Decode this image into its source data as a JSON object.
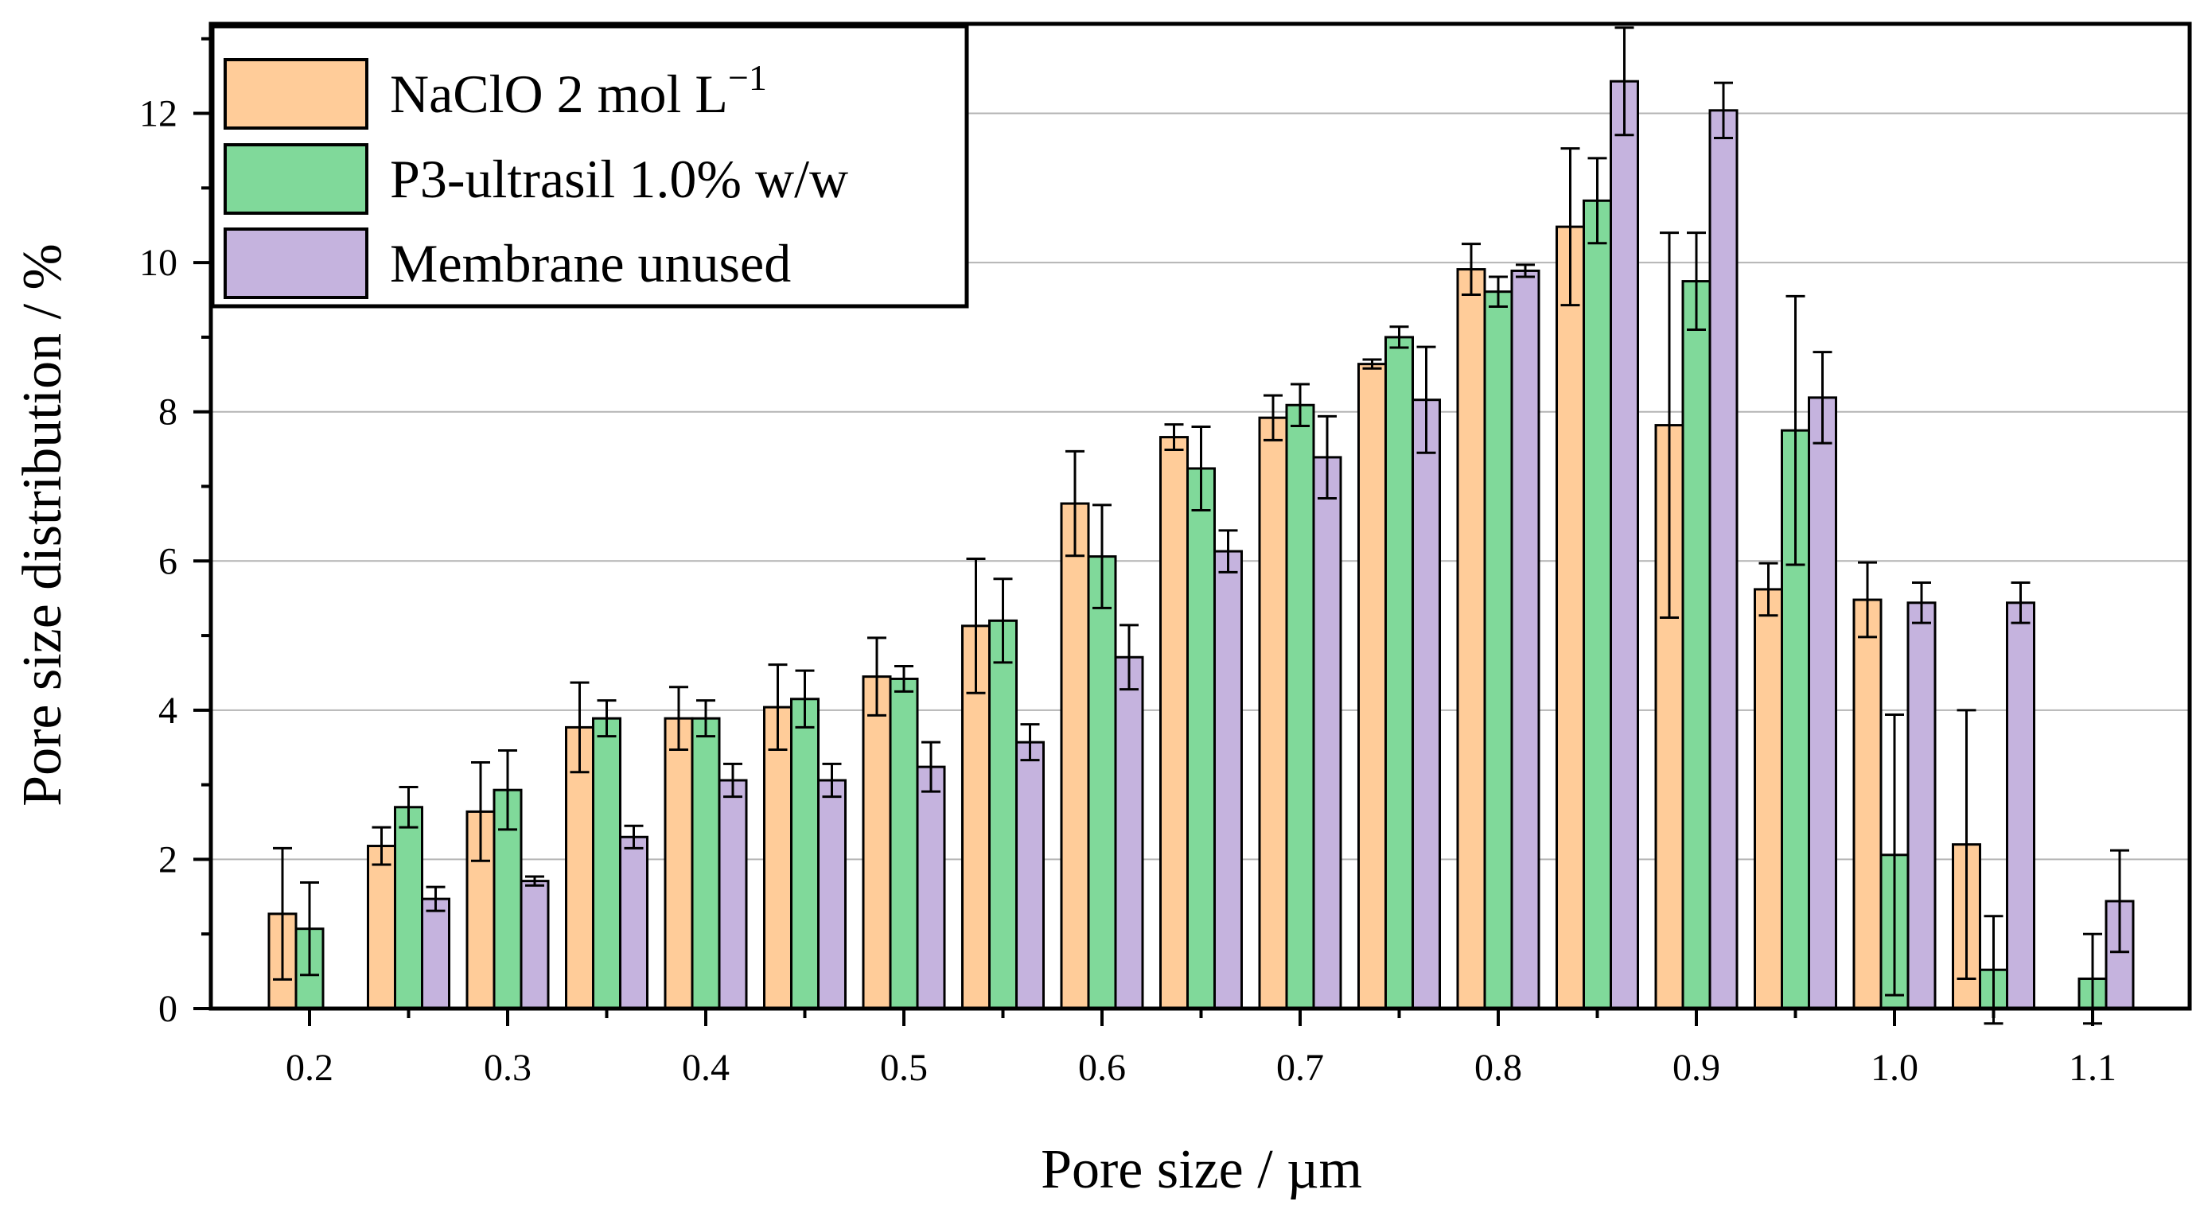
{
  "chart_data": {
    "type": "bar",
    "xlabel": "Pore size / µm",
    "ylabel": "Pore size distribution / %",
    "ylim": [
      0,
      13.2
    ],
    "yticks": [
      0,
      2,
      4,
      6,
      8,
      10,
      12
    ],
    "grid": true,
    "legend_position": "top-left",
    "categories": [
      "0.20",
      "0.25",
      "0.30",
      "0.35",
      "0.40",
      "0.45",
      "0.50",
      "0.55",
      "0.60",
      "0.65",
      "0.70",
      "0.75",
      "0.80",
      "0.85",
      "0.90",
      "0.95",
      "1.00",
      "1.05",
      "1.10"
    ],
    "tick_labels": [
      "0.2",
      "",
      "0.3",
      "",
      "0.4",
      "",
      "0.5",
      "",
      "0.6",
      "",
      "0.7",
      "",
      "0.8",
      "",
      "0.9",
      "",
      "1.0",
      "",
      "1.1"
    ],
    "series": [
      {
        "name": "NaClO 2 mol L",
        "name_sup": "−1",
        "color": "#FFCC99",
        "values": [
          1.27,
          2.18,
          2.64,
          3.77,
          3.89,
          4.04,
          4.45,
          5.13,
          6.77,
          7.66,
          7.92,
          8.64,
          9.91,
          10.48,
          7.82,
          5.62,
          5.48,
          2.2,
          null
        ],
        "errors": [
          0.88,
          0.25,
          0.66,
          0.6,
          0.42,
          0.57,
          0.52,
          0.9,
          0.7,
          0.17,
          0.3,
          0.06,
          0.34,
          1.05,
          2.58,
          0.35,
          0.5,
          1.8,
          null
        ]
      },
      {
        "name": "P3-ultrasil 1.0% w/w",
        "name_sup": "",
        "color": "#80D99A",
        "values": [
          1.07,
          2.7,
          2.93,
          3.89,
          3.89,
          4.15,
          4.42,
          5.2,
          6.06,
          7.24,
          8.09,
          9.0,
          9.61,
          10.83,
          9.75,
          7.75,
          2.06,
          0.52,
          0.4
        ],
        "errors": [
          0.62,
          0.27,
          0.53,
          0.24,
          0.24,
          0.38,
          0.17,
          0.56,
          0.69,
          0.56,
          0.28,
          0.14,
          0.2,
          0.57,
          0.65,
          1.8,
          1.88,
          0.72,
          0.6
        ]
      },
      {
        "name": "Membrane unused",
        "name_sup": "",
        "color": "#C5B3DE",
        "values": [
          null,
          1.47,
          1.71,
          2.3,
          3.06,
          3.06,
          3.24,
          3.57,
          4.71,
          6.13,
          7.39,
          8.16,
          9.89,
          12.43,
          12.04,
          8.19,
          5.44,
          5.44,
          1.44
        ],
        "errors": [
          null,
          0.16,
          0.06,
          0.15,
          0.22,
          0.22,
          0.33,
          0.24,
          0.43,
          0.28,
          0.55,
          0.71,
          0.08,
          0.72,
          0.37,
          0.61,
          0.27,
          0.27,
          0.68
        ]
      }
    ]
  }
}
